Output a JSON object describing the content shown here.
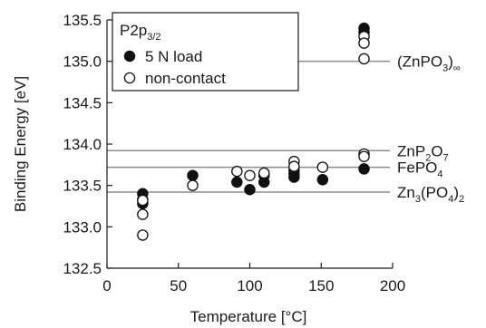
{
  "chart_data": {
    "type": "scatter",
    "xlabel": "Temperature [°C]",
    "ylabel": "Binding Energy [eV]",
    "xlim": [
      0,
      200
    ],
    "ylim": [
      132.5,
      135.5
    ],
    "xticks": [
      "0",
      "50",
      "100",
      "150",
      "200"
    ],
    "yticks": [
      "132.5",
      "133.0",
      "133.5",
      "134.0",
      "134.5",
      "135.0",
      "135.5"
    ],
    "grid": false,
    "legend_position": "top-left",
    "legend": {
      "title_main": "P2p",
      "title_sub": "3/2",
      "entries": [
        "5 N load",
        "non-contact"
      ]
    },
    "series": [
      {
        "name": "5 N load",
        "marker": "filled-circle",
        "color": "#111111",
        "points": [
          [
            25,
            133.4
          ],
          [
            25,
            133.33
          ],
          [
            25,
            133.28
          ],
          [
            60,
            133.62
          ],
          [
            91,
            133.54
          ],
          [
            100,
            133.45
          ],
          [
            110,
            133.54
          ],
          [
            110,
            133.62
          ],
          [
            131,
            133.6
          ],
          [
            131,
            133.64
          ],
          [
            131,
            133.68
          ],
          [
            151,
            133.57
          ],
          [
            180,
            135.4
          ],
          [
            180,
            135.35
          ],
          [
            180,
            133.7
          ]
        ]
      },
      {
        "name": "non-contact",
        "marker": "open-circle",
        "color": "#111111",
        "points": [
          [
            25,
            133.32
          ],
          [
            25,
            133.15
          ],
          [
            25,
            132.9
          ],
          [
            60,
            133.5
          ],
          [
            91,
            133.67
          ],
          [
            100,
            133.62
          ],
          [
            110,
            133.65
          ],
          [
            131,
            133.79
          ],
          [
            131,
            133.73
          ],
          [
            151,
            133.72
          ],
          [
            180,
            135.3
          ],
          [
            180,
            135.22
          ],
          [
            180,
            135.03
          ],
          [
            180,
            133.88
          ],
          [
            180,
            133.85
          ]
        ]
      }
    ],
    "reference_lines": [
      {
        "y": 135.0,
        "label_parts": [
          [
            "(ZnPO",
            "n"
          ],
          [
            "3",
            "sub"
          ],
          [
            ")",
            "n"
          ],
          [
            "∞",
            "sub"
          ]
        ]
      },
      {
        "y": 133.92,
        "label_parts": [
          [
            "ZnP",
            "n"
          ],
          [
            "2",
            "sub"
          ],
          [
            "O",
            "n"
          ],
          [
            "7",
            "sub"
          ]
        ]
      },
      {
        "y": 133.72,
        "label_parts": [
          [
            "FePO",
            "n"
          ],
          [
            "4",
            "sub"
          ]
        ]
      },
      {
        "y": 133.42,
        "label_parts": [
          [
            "Zn",
            "n"
          ],
          [
            "3",
            "sub"
          ],
          [
            "(PO",
            "n"
          ],
          [
            "4",
            "sub"
          ],
          [
            ")",
            "n"
          ],
          [
            "2",
            "sub"
          ]
        ]
      }
    ],
    "colors": {
      "reference_line": "#8c8c8c",
      "axis": "#1a1a1a"
    }
  }
}
